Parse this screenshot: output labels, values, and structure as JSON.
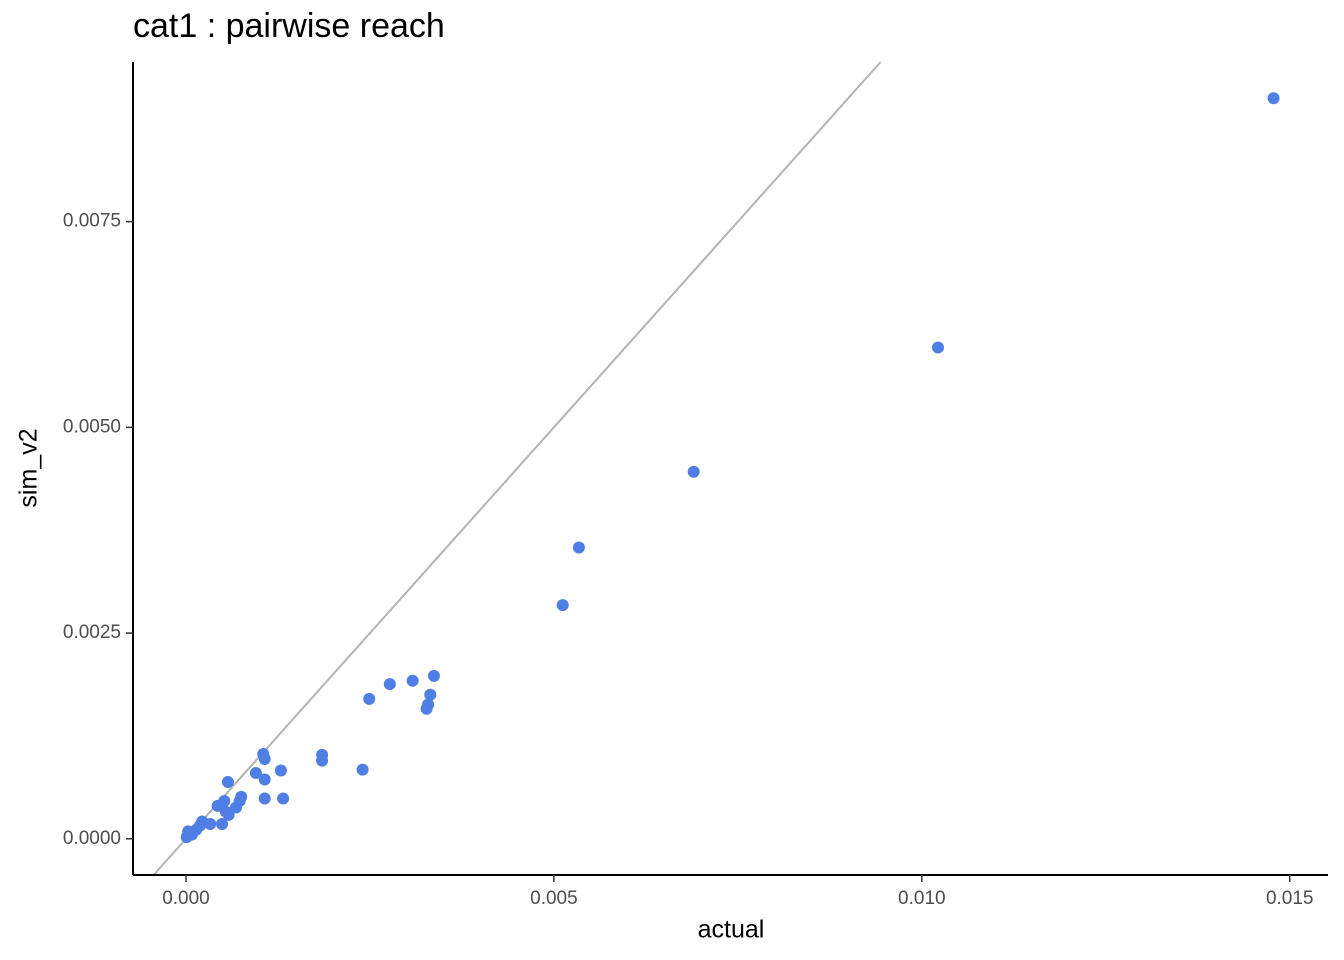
{
  "chart_data": {
    "type": "scatter",
    "title": "cat1 : pairwise reach",
    "x_label": "actual",
    "y_label": "sim_v2",
    "xlim": [
      -0.00072,
      0.01552
    ],
    "ylim": [
      -0.00044,
      0.00944
    ],
    "xticks": [
      {
        "value": 0,
        "label": "0.000"
      },
      0.005,
      {
        "value": 0.01,
        "label": "0.010"
      },
      0.015
    ],
    "yticks": [
      {
        "value": 0,
        "label": "0.0000"
      },
      0.0025,
      {
        "value": 0.005,
        "label": "0.0050"
      },
      0.0075
    ],
    "identity_line": true,
    "identity_color": "#b3b3b3",
    "color": "#4f7fe5",
    "x": [
      0.01478,
      0.01022,
      0.0069,
      0.00534,
      0.00512,
      0.00337,
      0.00308,
      0.00277,
      0.00332,
      0.00249,
      0.00329,
      0.00327,
      0.0024,
      0.00185,
      0.00185,
      0.00129,
      0.00132,
      0.00105,
      0.00107,
      0.00095,
      0.00107,
      0.00107,
      0.00057,
      0.00075,
      0.00073,
      0.00068,
      0.00052,
      0.00043,
      0.00058,
      0.00049,
      0.00033,
      0.00019,
      0.00014,
      8e-05,
      3e-05,
      1e-05,
      0.00022,
      0.00054
    ],
    "values": [
      0.009,
      0.00597,
      0.00446,
      0.00354,
      0.00284,
      0.00198,
      0.00192,
      0.00188,
      0.00175,
      0.0017,
      0.00163,
      0.00158,
      0.00084,
      0.00102,
      0.00095,
      0.00083,
      0.00049,
      0.00103,
      0.00097,
      0.0008,
      0.00072,
      0.00049,
      0.00069,
      0.00051,
      0.00046,
      0.00038,
      0.00046,
      0.0004,
      0.00029,
      0.00018,
      0.00018,
      0.00016,
      0.00011,
      5e-05,
      9e-05,
      2e-05,
      0.00021,
      0.00033
    ]
  }
}
